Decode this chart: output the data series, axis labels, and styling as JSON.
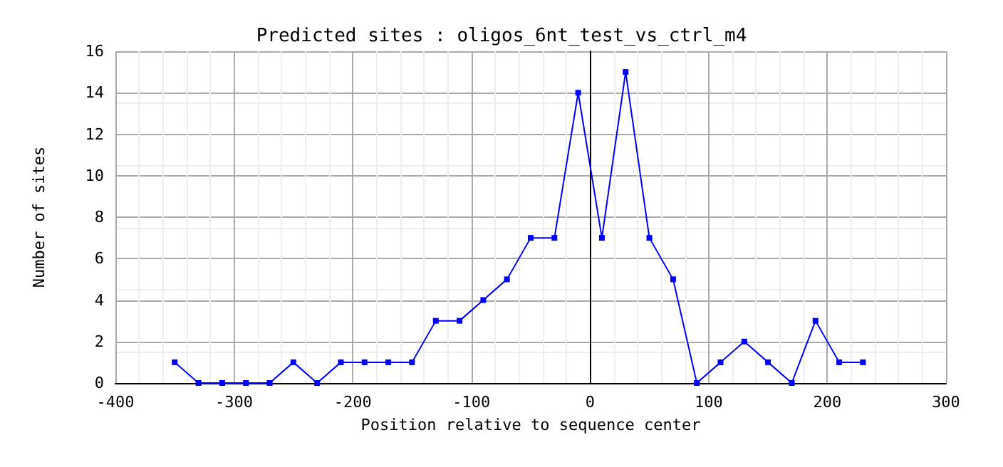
{
  "chart_data": {
    "type": "line",
    "title": "Predicted sites : oligos_6nt_test_vs_ctrl_m4",
    "xlabel": "Position relative to sequence center",
    "ylabel": "Number of sites",
    "x": [
      -350,
      -330,
      -310,
      -290,
      -270,
      -250,
      -230,
      -210,
      -190,
      -170,
      -150,
      -130,
      -110,
      -90,
      -70,
      -50,
      -30,
      -10,
      10,
      30,
      50,
      70,
      90,
      110,
      130,
      150,
      170,
      190,
      210,
      230
    ],
    "series": [
      {
        "color": "#0000ff",
        "values": [
          1,
          0,
          0,
          0,
          0,
          1,
          0,
          1,
          1,
          1,
          1,
          3,
          3,
          4,
          5,
          7,
          7,
          14,
          7,
          15,
          7,
          5,
          0,
          1,
          2,
          1,
          0,
          3,
          1,
          1
        ]
      }
    ],
    "xlim": [
      -400,
      300
    ],
    "xticks": [
      -400,
      -300,
      -200,
      -100,
      0,
      100,
      200,
      300
    ],
    "ylim": [
      0,
      16
    ],
    "yticks": [
      0,
      2,
      4,
      6,
      8,
      10,
      12,
      14,
      16
    ],
    "ref_lines": [
      {
        "axis": "x",
        "value": 0,
        "color": "#000000"
      }
    ],
    "grid": true,
    "marker": "square",
    "line_style": "solid"
  }
}
